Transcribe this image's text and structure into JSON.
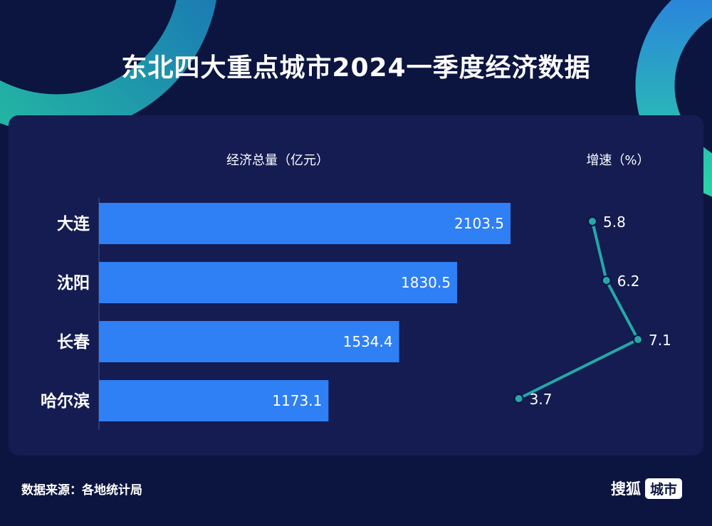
{
  "title": "东北四大重点城市2024一季度经济数据",
  "source": "数据来源：各地统计局",
  "brand": {
    "name": "搜狐",
    "tag": "城市"
  },
  "colors": {
    "bar": "#2f7ff5",
    "line": "#24a8a8",
    "background": "#0c1440",
    "panel": "#141c52"
  },
  "chart_data": [
    {
      "type": "bar",
      "orientation": "horizontal",
      "header": "经济总量（亿元）",
      "categories": [
        "大连",
        "沈阳",
        "长春",
        "哈尔滨"
      ],
      "values": [
        2103.5,
        1830.5,
        1534.4,
        1173.1
      ],
      "data_labels": true
    },
    {
      "type": "line",
      "header": "增速（%）",
      "categories": [
        "大连",
        "沈阳",
        "长春",
        "哈尔滨"
      ],
      "values": [
        5.8,
        6.2,
        7.1,
        3.7
      ],
      "data_labels": true
    }
  ]
}
